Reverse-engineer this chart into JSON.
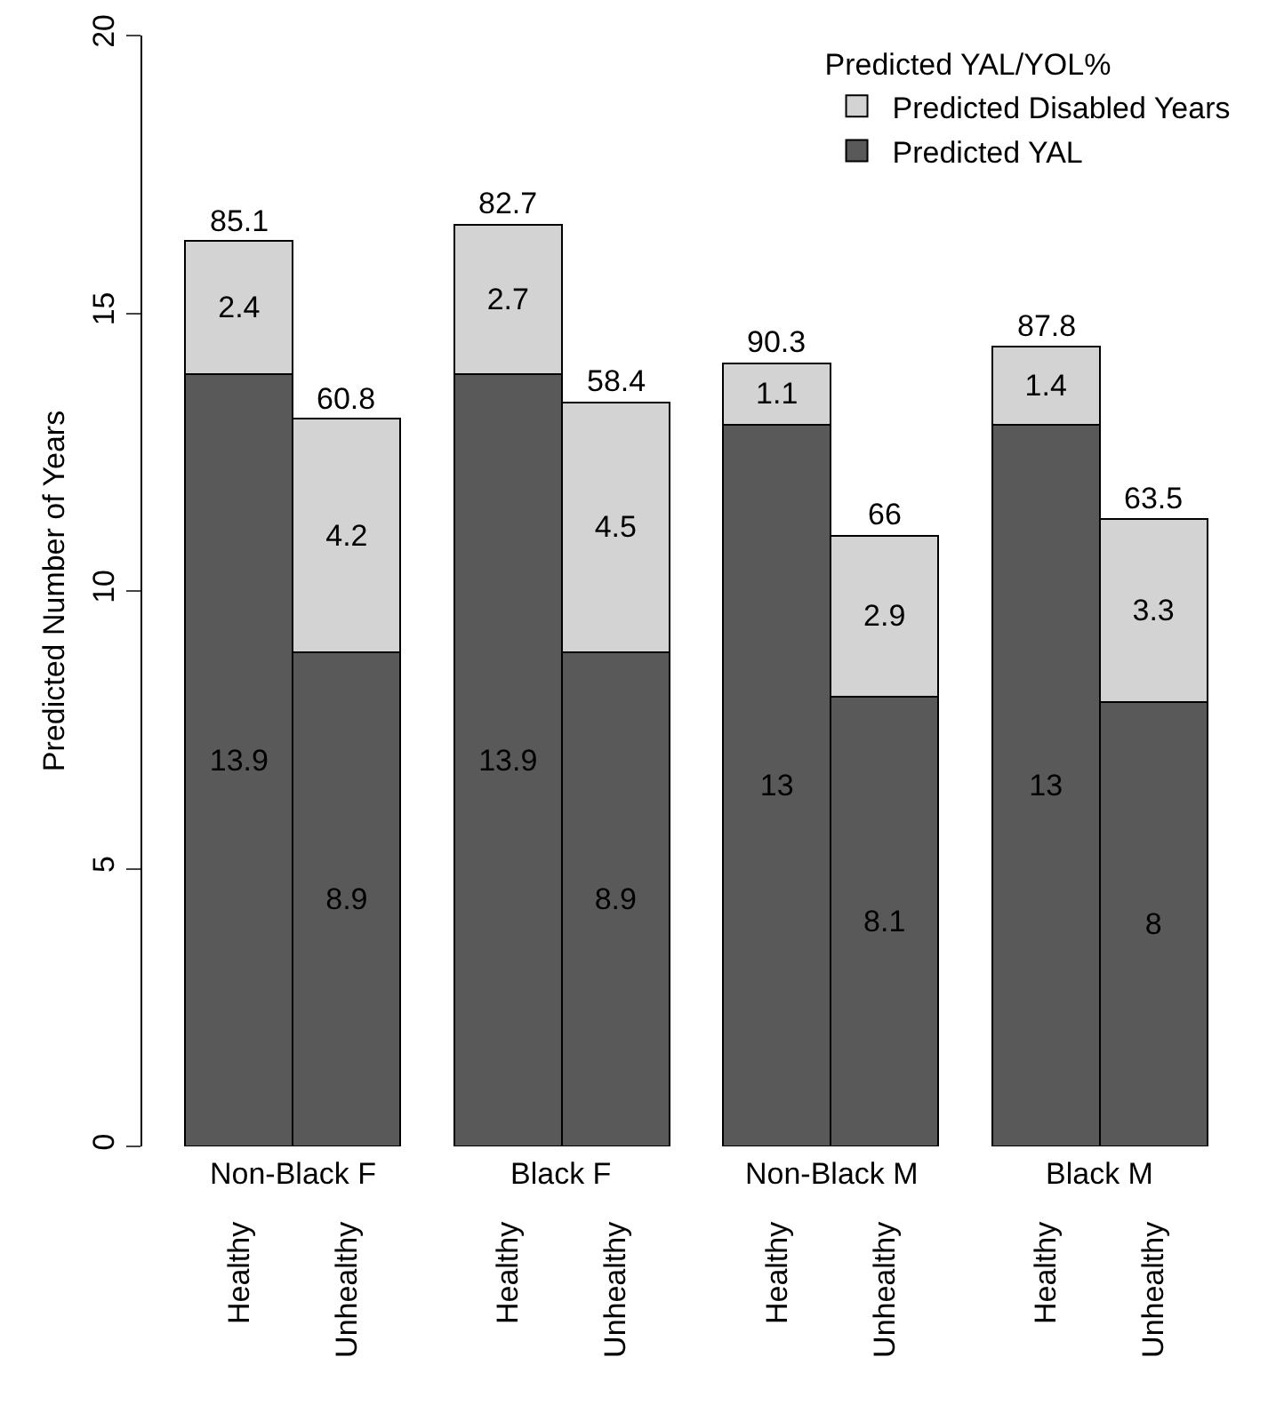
{
  "chart_data": {
    "type": "bar",
    "stacked": true,
    "ylabel": "Predicted Number of Years",
    "legend_title": "Predicted YAL/YOL%",
    "legend": "top right",
    "grid": false,
    "data_labels": true,
    "categories": [
      "Healthy",
      "Unhealthy",
      "Healthy",
      "Unhealthy",
      "Healthy",
      "Unhealthy",
      "Healthy",
      "Unhealthy"
    ],
    "series": [
      {
        "name": "Predicted YAL",
        "color": "#595959",
        "values": [
          13.9,
          8.9,
          13.9,
          8.9,
          13,
          8.1,
          13,
          8
        ]
      },
      {
        "name": "Predicted Disabled Years",
        "color": "#d3d3d3",
        "values": [
          2.4,
          4.2,
          2.7,
          4.5,
          1.1,
          2.9,
          1.4,
          3.3
        ]
      }
    ],
    "ylim": [
      0,
      20
    ],
    "yticks": [
      0,
      5,
      10,
      15,
      20
    ],
    "annotations": [
      {
        "text": "85.1",
        "y": 16.3
      },
      {
        "text": "60.8",
        "y": 13.1
      },
      {
        "text": "82.7",
        "y": 16.6
      },
      {
        "text": "58.4",
        "y": 13.4
      },
      {
        "text": "90.3",
        "y": 14.1
      },
      {
        "text": "66",
        "y": 11
      },
      {
        "text": "87.8",
        "y": 14.4
      },
      {
        "text": "63.5",
        "y": 11.3
      },
      "Non-Black F",
      "Black F",
      "Non-Black M",
      "Black M"
    ]
  }
}
